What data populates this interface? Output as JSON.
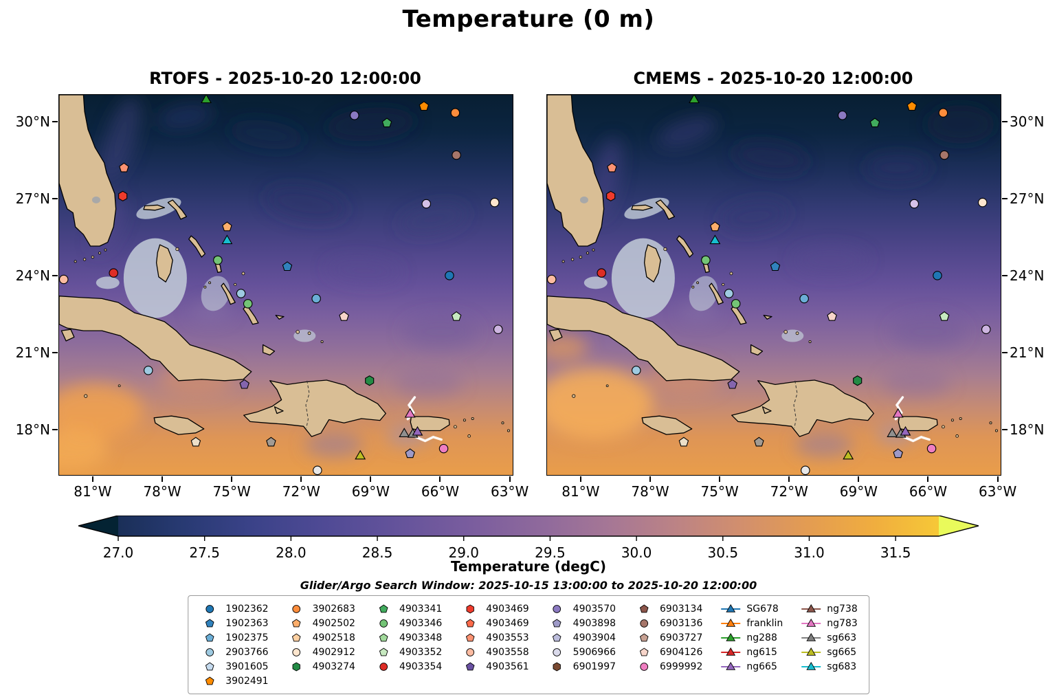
{
  "figure": {
    "title": "Temperature (0 m)"
  },
  "panels": [
    {
      "name": "rtofs",
      "title": "RTOFS - 2025-10-20 12:00:00"
    },
    {
      "name": "cmems",
      "title": "CMEMS - 2025-10-20 12:00:00"
    }
  ],
  "subtitle": "Glider/Argo Search Window: 2025-10-15 13:00:00 to 2025-10-20 12:00:00",
  "axes": {
    "x_ticks": [
      {
        "label": "81°W",
        "lon": -81
      },
      {
        "label": "78°W",
        "lon": -78
      },
      {
        "label": "75°W",
        "lon": -75
      },
      {
        "label": "72°W",
        "lon": -72
      },
      {
        "label": "69°W",
        "lon": -69
      },
      {
        "label": "66°W",
        "lon": -66
      },
      {
        "label": "63°W",
        "lon": -63
      }
    ],
    "y_ticks": [
      {
        "label": "30°N",
        "lat": 30
      },
      {
        "label": "27°N",
        "lat": 27
      },
      {
        "label": "24°N",
        "lat": 24
      },
      {
        "label": "21°N",
        "lat": 21
      },
      {
        "label": "18°N",
        "lat": 18
      }
    ]
  },
  "colorbar": {
    "label": "Temperature (degC)",
    "vmin": 27.0,
    "vmax": 31.75,
    "ticks": [
      "27.0",
      "27.5",
      "28.0",
      "28.5",
      "29.0",
      "29.5",
      "30.0",
      "30.5",
      "31.0",
      "31.5"
    ],
    "under_color": "#042333",
    "over_color": "#e9fa5b",
    "stops": [
      [
        0.0,
        "#1a2f58"
      ],
      [
        0.08,
        "#283a73"
      ],
      [
        0.16,
        "#3a4288"
      ],
      [
        0.25,
        "#4f4a95"
      ],
      [
        0.34,
        "#64539b"
      ],
      [
        0.43,
        "#7a5d9e"
      ],
      [
        0.52,
        "#906a9c"
      ],
      [
        0.6,
        "#a67795"
      ],
      [
        0.68,
        "#bc8385"
      ],
      [
        0.76,
        "#d28f6d"
      ],
      [
        0.84,
        "#e39c52"
      ],
      [
        0.92,
        "#f0ad3f"
      ],
      [
        1.0,
        "#f6c837"
      ]
    ]
  },
  "map_style": {
    "land_color": "#d9be95",
    "coast_color": "#000000",
    "lake_color": "#a8a8a8",
    "bank_color": "#c3cdd8",
    "track_color": "#ffffff",
    "ocean_gradient": [
      [
        0.0,
        "#081f33"
      ],
      [
        0.1,
        "#0c2541"
      ],
      [
        0.2,
        "#1d2f5b"
      ],
      [
        0.3,
        "#343b75"
      ],
      [
        0.4,
        "#4d4589"
      ],
      [
        0.5,
        "#65519a"
      ],
      [
        0.58,
        "#7a5f9f"
      ],
      [
        0.66,
        "#8f6e9b"
      ],
      [
        0.74,
        "#a87e90"
      ],
      [
        0.82,
        "#c58b74"
      ],
      [
        0.9,
        "#de9556"
      ],
      [
        1.0,
        "#e99d4a"
      ]
    ]
  },
  "legend": {
    "columns": [
      [
        {
          "label": "1902362",
          "marker": "circle",
          "color": "#1f77b4"
        },
        {
          "label": "1902363",
          "marker": "pentagon",
          "color": "#3182bd"
        },
        {
          "label": "1902375",
          "marker": "pentagon",
          "color": "#6baed6"
        },
        {
          "label": "2903766",
          "marker": "circle",
          "color": "#9ecae1"
        },
        {
          "label": "3901605",
          "marker": "pentagon",
          "color": "#c6dbef"
        },
        {
          "label": "3902491",
          "marker": "pentagon",
          "color": "#ff8c00"
        }
      ],
      [
        {
          "label": "3902683",
          "marker": "circle",
          "color": "#fd8d3c"
        },
        {
          "label": "4902502",
          "marker": "pentagon",
          "color": "#fdae6b"
        },
        {
          "label": "4902518",
          "marker": "pentagon",
          "color": "#fdd0a2"
        },
        {
          "label": "4902912",
          "marker": "circle",
          "color": "#fee6ce"
        },
        {
          "label": "4903274",
          "marker": "hexagon",
          "color": "#238b45"
        }
      ],
      [
        {
          "label": "4903341",
          "marker": "pentagon",
          "color": "#41ab5d"
        },
        {
          "label": "4903346",
          "marker": "circle",
          "color": "#74c476"
        },
        {
          "label": "4903348",
          "marker": "pentagon",
          "color": "#a1d99b"
        },
        {
          "label": "4903352",
          "marker": "pentagon",
          "color": "#c7e9c0"
        },
        {
          "label": "4903354",
          "marker": "circle",
          "color": "#de2d26"
        }
      ],
      [
        {
          "label": "4903469",
          "marker": "hexagon",
          "color": "#ef3b2c"
        },
        {
          "label": "4903469",
          "marker": "pentagon",
          "color": "#fb6a4a"
        },
        {
          "label": "4903553",
          "marker": "pentagon",
          "color": "#fc9272"
        },
        {
          "label": "4903558",
          "marker": "circle",
          "color": "#fcbba1"
        },
        {
          "label": "4903561",
          "marker": "pentagon",
          "color": "#6a51a3"
        }
      ],
      [
        {
          "label": "4903570",
          "marker": "circle",
          "color": "#8b79c1"
        },
        {
          "label": "4903898",
          "marker": "pentagon",
          "color": "#9e9ac8"
        },
        {
          "label": "4903904",
          "marker": "pentagon",
          "color": "#bcbddc"
        },
        {
          "label": "5906966",
          "marker": "circle",
          "color": "#dadaeb"
        },
        {
          "label": "6901997",
          "marker": "hexagon",
          "color": "#7a4a32"
        }
      ],
      [
        {
          "label": "6903134",
          "marker": "pentagon",
          "color": "#8c564b"
        },
        {
          "label": "6903136",
          "marker": "circle",
          "color": "#a6766a"
        },
        {
          "label": "6903727",
          "marker": "pentagon",
          "color": "#c7a193"
        },
        {
          "label": "6904126",
          "marker": "pentagon",
          "color": "#f7d5ca"
        },
        {
          "label": "6999992",
          "marker": "circle",
          "color": "#ef7ec1"
        }
      ],
      [
        {
          "label": "SG678",
          "marker": "triangle-line",
          "color": "#1f77b4"
        },
        {
          "label": "franklin",
          "marker": "triangle-line",
          "color": "#ff7f0e"
        },
        {
          "label": "ng288",
          "marker": "triangle-line",
          "color": "#2ca02c"
        },
        {
          "label": "ng615",
          "marker": "triangle-line",
          "color": "#d62728"
        },
        {
          "label": "ng665",
          "marker": "triangle-line",
          "color": "#9467bd"
        }
      ],
      [
        {
          "label": "ng738",
          "marker": "triangle-line",
          "color": "#8c564b"
        },
        {
          "label": "ng783",
          "marker": "triangle-line",
          "color": "#e377c2"
        },
        {
          "label": "sg663",
          "marker": "triangle-line",
          "color": "#7f7f7f"
        },
        {
          "label": "sg665",
          "marker": "triangle-line",
          "color": "#bcbd22"
        },
        {
          "label": "sg683",
          "marker": "triangle-line",
          "color": "#17becf"
        }
      ]
    ]
  },
  "chart_data": {
    "type": "heatmap",
    "variant": "geographic-sst-model-comparison",
    "title": "Temperature (0 m)",
    "variable": "Temperature",
    "units": "degC",
    "depth_m": 0,
    "panels": [
      {
        "model": "RTOFS",
        "valid_time": "2025-10-20 12:00:00"
      },
      {
        "model": "CMEMS",
        "valid_time": "2025-10-20 12:00:00"
      }
    ],
    "lon_range": [
      -82.45,
      -62.87
    ],
    "lat_range": [
      16.22,
      31.05
    ],
    "x_tick_labels": [
      "81°W",
      "78°W",
      "75°W",
      "72°W",
      "69°W",
      "66°W",
      "63°W"
    ],
    "y_tick_labels": [
      "18°N",
      "21°N",
      "24°N",
      "27°N",
      "30°N"
    ],
    "colorbar_ticks": [
      27.0,
      27.5,
      28.0,
      28.5,
      29.0,
      29.5,
      30.0,
      30.5,
      31.0,
      31.5
    ],
    "colorbar_extend": "both",
    "search_window": "2025-10-15 13:00:00 to 2025-10-20 12:00:00",
    "argo_floats": [
      "1902362",
      "1902363",
      "1902375",
      "2903766",
      "3901605",
      "3902491",
      "3902683",
      "4902502",
      "4902518",
      "4902912",
      "4903274",
      "4903341",
      "4903346",
      "4903348",
      "4903352",
      "4903354",
      "4903469",
      "4903469",
      "4903553",
      "4903558",
      "4903561",
      "4903570",
      "4903898",
      "4903904",
      "5906966",
      "6901997",
      "6903134",
      "6903136",
      "6903727",
      "6904126",
      "6999992"
    ],
    "gliders": [
      "SG678",
      "franklin",
      "ng288",
      "ng615",
      "ng665",
      "ng738",
      "ng783",
      "sg663",
      "sg665",
      "sg683"
    ],
    "markers": [
      {
        "platform": "ng288",
        "shape": "triangle",
        "color": "#2ca02c",
        "lon": -76.1,
        "lat": 30.85
      },
      {
        "platform": "3902491",
        "shape": "pentagon",
        "color": "#ff8c00",
        "lon": -66.7,
        "lat": 30.6
      },
      {
        "platform": "3902683",
        "shape": "circle",
        "color": "#fd8d3c",
        "lon": -65.35,
        "lat": 30.35
      },
      {
        "platform": "4903570",
        "shape": "circle",
        "color": "#8b79c1",
        "lon": -69.7,
        "lat": 30.25
      },
      {
        "platform": "4903341",
        "shape": "pentagon",
        "color": "#41ab5d",
        "lon": -68.3,
        "lat": 29.95
      },
      {
        "platform": "6903136",
        "shape": "circle",
        "color": "#a6766a",
        "lon": -65.3,
        "lat": 28.7
      },
      {
        "platform": "4903553",
        "shape": "pentagon",
        "color": "#fc9272",
        "lon": -79.65,
        "lat": 28.2
      },
      {
        "platform": "4903469",
        "shape": "hexagon",
        "color": "#ef3b2c",
        "lon": -79.7,
        "lat": 27.1
      },
      {
        "platform": "5906966",
        "shape": "circle",
        "color": "#d5c1e8",
        "lon": -66.6,
        "lat": 26.8
      },
      {
        "platform": "4902912",
        "shape": "circle",
        "color": "#fee6ce",
        "lon": -63.65,
        "lat": 26.85
      },
      {
        "platform": "4902502",
        "shape": "pentagon",
        "color": "#fdae6b",
        "lon": -75.2,
        "lat": 25.9
      },
      {
        "platform": "sg683",
        "shape": "triangle",
        "color": "#17becf",
        "lon": -75.2,
        "lat": 25.35
      },
      {
        "platform": "4903346",
        "shape": "circle",
        "color": "#74c476",
        "lon": -75.6,
        "lat": 24.6
      },
      {
        "platform": "1902363",
        "shape": "pentagon",
        "color": "#3182bd",
        "lon": -72.6,
        "lat": 24.35
      },
      {
        "platform": "4903354",
        "shape": "circle",
        "color": "#de2d26",
        "lon": -80.1,
        "lat": 24.1
      },
      {
        "platform": "4903558",
        "shape": "circle",
        "color": "#fcbba1",
        "lon": -82.25,
        "lat": 23.85
      },
      {
        "platform": "1902362",
        "shape": "circle",
        "color": "#1f77b4",
        "lon": -65.6,
        "lat": 24.0
      },
      {
        "platform": "2903766",
        "shape": "circle",
        "color": "#9ecae1",
        "lon": -74.6,
        "lat": 23.3
      },
      {
        "platform": "4903346",
        "shape": "circle",
        "color": "#74c476",
        "lon": -74.3,
        "lat": 22.9
      },
      {
        "platform": "2903766",
        "shape": "circle",
        "color": "#6baed6",
        "lon": -71.35,
        "lat": 23.1
      },
      {
        "platform": "4903352",
        "shape": "pentagon",
        "color": "#c7e9c0",
        "lon": -65.3,
        "lat": 22.4
      },
      {
        "platform": "6904126",
        "shape": "pentagon",
        "color": "#f7d5ca",
        "lon": -70.15,
        "lat": 22.4
      },
      {
        "platform": "5906966",
        "shape": "circle",
        "color": "#cdb5e0",
        "lon": -63.5,
        "lat": 21.9
      },
      {
        "platform": "2903766",
        "shape": "circle",
        "color": "#9ecae1",
        "lon": -78.6,
        "lat": 20.3
      },
      {
        "platform": "4903561",
        "shape": "pentagon",
        "color": "#8465ad",
        "lon": -74.45,
        "lat": 19.75
      },
      {
        "platform": "4903274",
        "shape": "hexagon",
        "color": "#238b45",
        "lon": -69.05,
        "lat": 19.9
      },
      {
        "platform": "ng783",
        "shape": "triangle",
        "color": "#e377c2",
        "lon": -67.3,
        "lat": 18.58
      },
      {
        "platform": "sg663",
        "shape": "triangle",
        "color": "#8f8f8f",
        "lon": -67.55,
        "lat": 17.82
      },
      {
        "platform": "sg663",
        "shape": "triangle",
        "color": "#8f8f8f",
        "lon": -67.18,
        "lat": 17.8
      },
      {
        "platform": "ng665",
        "shape": "triangle",
        "color": "#9467bd",
        "lon": -66.98,
        "lat": 17.88
      },
      {
        "platform": "sg665",
        "shape": "triangle",
        "color": "#bcbd22",
        "lon": -69.45,
        "lat": 16.95
      },
      {
        "platform": "4903898",
        "shape": "pentagon",
        "color": "#9e9ac8",
        "lon": -67.3,
        "lat": 17.05
      },
      {
        "platform": "6999992",
        "shape": "circle",
        "color": "#ef7ec1",
        "lon": -65.85,
        "lat": 17.25
      },
      {
        "platform": "6903134",
        "shape": "pentagon",
        "color": "#a29b93",
        "lon": -73.3,
        "lat": 17.5
      },
      {
        "platform": "4902518",
        "shape": "pentagon",
        "color": "#ecdfc8",
        "lon": -76.55,
        "lat": 17.5
      },
      {
        "platform": "argo",
        "shape": "circle",
        "color": "#e8e8e8",
        "lon": -71.3,
        "lat": 16.4
      }
    ],
    "tracks": [
      [
        [
          -67.1,
          19.25
        ],
        [
          -67.35,
          18.95
        ],
        [
          -67.15,
          18.65
        ],
        [
          -67.4,
          18.4
        ]
      ],
      [
        [
          -67.05,
          17.7
        ],
        [
          -66.65,
          17.55
        ],
        [
          -66.3,
          17.7
        ],
        [
          -65.95,
          17.6
        ]
      ]
    ]
  }
}
